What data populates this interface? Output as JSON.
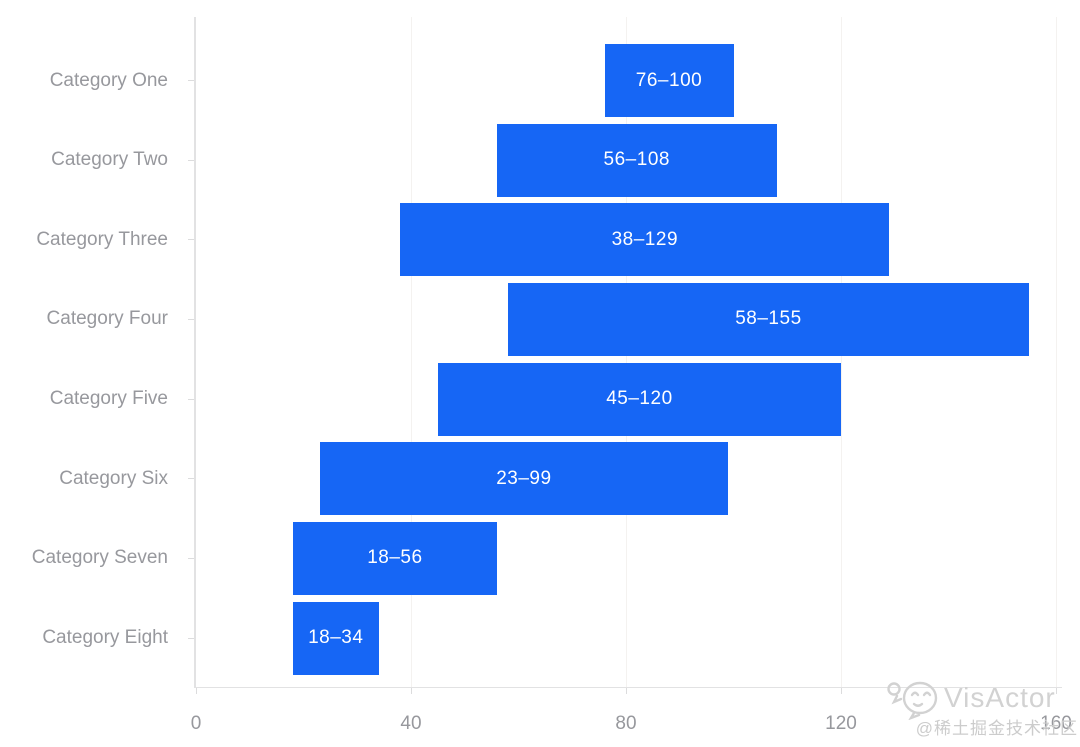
{
  "page": {
    "background": "#ffffff"
  },
  "watermark": {
    "logo_icon": "visactor-logo",
    "brand": "VisActor",
    "credit": "@稀土掘金技术社区"
  },
  "chart_data": {
    "type": "bar",
    "subtype": "range-bar",
    "orientation": "horizontal",
    "title": "",
    "xlabel": "",
    "ylabel": "",
    "grid": true,
    "legend_position": "none",
    "categories": [
      "Category One",
      "Category Two",
      "Category Three",
      "Category Four",
      "Category Five",
      "Category Six",
      "Category Seven",
      "Category Eight"
    ],
    "series": [
      {
        "name": "range",
        "values": [
          [
            76,
            100
          ],
          [
            56,
            108
          ],
          [
            38,
            129
          ],
          [
            58,
            155
          ],
          [
            45,
            120
          ],
          [
            23,
            99
          ],
          [
            18,
            56
          ],
          [
            18,
            34
          ]
        ]
      }
    ],
    "bar_labels": [
      "76–100",
      "56–108",
      "38–129",
      "58–155",
      "45–120",
      "23–99",
      "18–56",
      "18–34"
    ],
    "xlim": [
      0,
      160
    ],
    "x_ticks": [
      0,
      40,
      80,
      120,
      160
    ],
    "x_tick_labels": [
      "0",
      "40",
      "80",
      "120",
      "160"
    ],
    "colors": {
      "bar": "#1666f5",
      "bar_label": "#ffffff",
      "axis_label": "#97989d",
      "grid_line": "#f4f2f0",
      "axis_line": "#e2e2e3",
      "tick_mark": "#dcdcdd"
    }
  }
}
